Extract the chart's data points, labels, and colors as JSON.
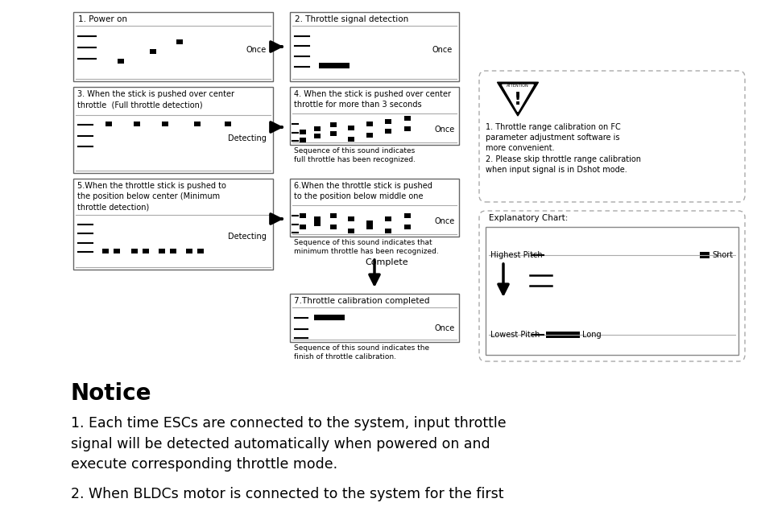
{
  "bg_color": "#ffffff",
  "notice_title": "Notice",
  "notice_text": "1. Each time ESCs are connected to the system, input throttle\nsignal will be detected automatically when powered on and\nexecute corresponding throttle mode.",
  "notice_text2": "2. When BLDCs motor is connected to the system for the first",
  "attention_text": "1. Throttle range calibration on FC\nparameter adjustment software is\nmore convenient.\n2. Please skip throttle range calibration\nwhen input signal is in Dshot mode.",
  "explanatory_title": "Explanatory Chart:",
  "exp_highest": "Highest Pitch",
  "exp_lowest": "Lowest Pitch",
  "exp_short": "Short",
  "exp_long": "Long",
  "step1_title": "1. Power on",
  "step1_label": "Once",
  "step2_title": "2. Throttle signal detection",
  "step2_label": "Once",
  "step3_title": "3. When the stick is pushed over center\nthrottle  (Full throttle detection)",
  "step3_label": "Detecting",
  "step4_title": "4. When the stick is pushed over center\nthrottle for more than 3 seconds",
  "step4_label": "Once",
  "step4_caption": "Sequence of this sound indicates\nfull throttle has been recognized.",
  "step5_title": "5.When the throttle stick is pushed to\nthe position below center (Minimum\nthrottle detection)",
  "step5_label": "Detecting",
  "step6_title": "6.When the throttle stick is pushed\nto the position below middle one",
  "step6_label": "Once",
  "step6_caption": "Sequence of this sound indicates that\nminimum throttle has been recognized.",
  "step7_title": "7.Throttle calibration completed",
  "step7_label": "Once",
  "step7_caption": "Sequence of this sound indicates the\nfinish of throttle calibration.",
  "complete_text": "Complete"
}
